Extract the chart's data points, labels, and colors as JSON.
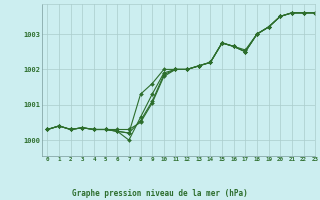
{
  "background_color": "#cceef0",
  "grid_color": "#aacccc",
  "line_color": "#2d6e2d",
  "title": "Graphe pression niveau de la mer (hPa)",
  "xlim": [
    -0.5,
    23
  ],
  "ylim": [
    999.55,
    1003.85
  ],
  "yticks": [
    1000,
    1001,
    1002,
    1003
  ],
  "xticks": [
    0,
    1,
    2,
    3,
    4,
    5,
    6,
    7,
    8,
    9,
    10,
    11,
    12,
    13,
    14,
    15,
    16,
    17,
    18,
    19,
    20,
    21,
    22,
    23
  ],
  "series1": [
    1000.3,
    1000.4,
    1000.3,
    1000.35,
    1000.3,
    1000.3,
    1000.3,
    1000.3,
    1000.5,
    1001.05,
    1001.8,
    1002.0,
    1002.0,
    1002.1,
    1002.2,
    1002.75,
    1002.65,
    1002.55,
    1003.0,
    1003.2,
    1003.5,
    1003.6,
    1003.6,
    1003.6
  ],
  "series2": [
    1000.3,
    1000.4,
    1000.3,
    1000.35,
    1000.3,
    1000.3,
    1000.25,
    1000.2,
    1000.55,
    1001.1,
    1001.85,
    1002.0,
    1002.0,
    1002.1,
    1002.2,
    1002.75,
    1002.65,
    1002.5,
    1003.0,
    1003.2,
    1003.5,
    1003.6,
    1003.6,
    1003.6
  ],
  "series3": [
    1000.3,
    1000.4,
    1000.3,
    1000.35,
    1000.3,
    1000.3,
    1000.25,
    1000.2,
    1001.3,
    1001.6,
    1002.0,
    1002.0,
    1002.0,
    1002.1,
    1002.2,
    1002.75,
    1002.65,
    1002.5,
    1003.0,
    1003.2,
    1003.5,
    1003.6,
    1003.6,
    1003.6
  ],
  "series4": [
    1000.3,
    1000.4,
    1000.3,
    1000.35,
    1000.3,
    1000.3,
    1000.25,
    1000.0,
    1000.65,
    1001.3,
    1001.9,
    1002.0,
    1002.0,
    1002.1,
    1002.2,
    1002.75,
    1002.65,
    1002.5,
    1003.0,
    1003.2,
    1003.5,
    1003.6,
    1003.6,
    1003.6
  ]
}
